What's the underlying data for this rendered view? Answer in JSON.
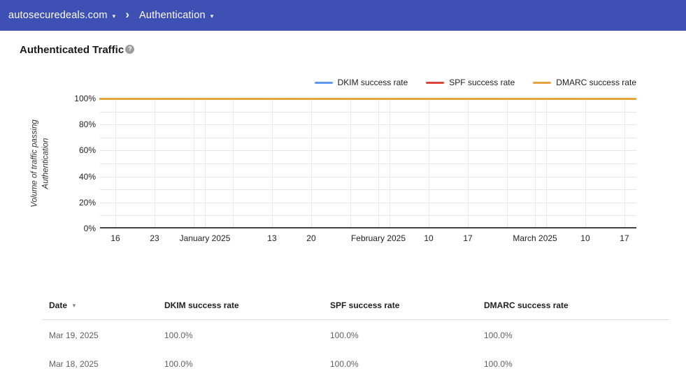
{
  "topbar": {
    "domain": "autosecuredeals.com",
    "caret": "▾",
    "separator": "›",
    "page": "Authentication"
  },
  "page": {
    "title": "Authenticated Traffic",
    "help_glyph": "?"
  },
  "chart_data": {
    "type": "line",
    "title": "Authenticated Traffic",
    "xlabel": "",
    "ylabel": "Volume of traffic passing Authentication",
    "ylabel_lines": [
      "Volume of traffic passing",
      "Authentication"
    ],
    "ylim": [
      0,
      100
    ],
    "grid": true,
    "legend_position": "top-right",
    "x_range": "Dec 2024 - Mar 2025, daily",
    "y_ticks": [
      {
        "label": "100%",
        "value": 100
      },
      {
        "label": "80%",
        "value": 80
      },
      {
        "label": "60%",
        "value": 60
      },
      {
        "label": "40%",
        "value": 40
      },
      {
        "label": "20%",
        "value": 20
      },
      {
        "label": "0%",
        "value": 0
      }
    ],
    "y_gridline_values": [
      10,
      20,
      30,
      40,
      50,
      60,
      70,
      80,
      90,
      100
    ],
    "x_gridlines_pct": [
      2.87,
      10.17,
      17.47,
      19.56,
      24.77,
      32.07,
      39.37,
      46.68,
      51.89,
      53.98,
      61.28,
      68.58,
      75.88,
      81.1,
      83.18,
      90.48,
      97.78
    ],
    "x_ticks": [
      {
        "label": "16",
        "pct": 2.87
      },
      {
        "label": "23",
        "pct": 10.17
      },
      {
        "label": "January 2025",
        "pct": 19.56
      },
      {
        "label": "13",
        "pct": 32.07
      },
      {
        "label": "20",
        "pct": 39.37
      },
      {
        "label": "February 2025",
        "pct": 51.89
      },
      {
        "label": "10",
        "pct": 61.28
      },
      {
        "label": "17",
        "pct": 68.58
      },
      {
        "label": "March 2025",
        "pct": 81.1
      },
      {
        "label": "10",
        "pct": 90.48
      },
      {
        "label": "17",
        "pct": 97.78
      }
    ],
    "series": [
      {
        "name": "DKIM success rate",
        "color": "#5e97f6",
        "values": [
          100,
          100,
          100,
          100,
          100,
          100,
          100,
          100,
          100,
          100,
          100
        ]
      },
      {
        "name": "SPF success rate",
        "color": "#db4437",
        "values": [
          100,
          100,
          100,
          100,
          100,
          100,
          100,
          100,
          100,
          100,
          100
        ]
      },
      {
        "name": "DMARC success rate",
        "color": "#e8a33d",
        "values": [
          100,
          100,
          100,
          100,
          100,
          100,
          100,
          100,
          100,
          100,
          100
        ]
      }
    ]
  },
  "table": {
    "columns": [
      {
        "label": "Date",
        "sort": "desc",
        "sort_glyph": "▼"
      },
      {
        "label": "DKIM success rate"
      },
      {
        "label": "SPF success rate"
      },
      {
        "label": "DMARC success rate"
      }
    ],
    "rows": [
      [
        "Mar 19, 2025",
        "100.0%",
        "100.0%",
        "100.0%"
      ],
      [
        "Mar 18, 2025",
        "100.0%",
        "100.0%",
        "100.0%"
      ]
    ]
  }
}
